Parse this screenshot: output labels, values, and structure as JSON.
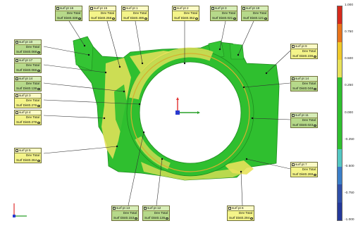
{
  "colors": {
    "part_green": "#2fbf2f",
    "part_yellow": "#e8e25a",
    "tag_yellow": "#f4f48a",
    "tag_green": "#b6d98a",
    "leader_line": "#333333",
    "axis_x": "#e03030",
    "axis_y": "#2aa02a",
    "axis_z": "#2a3ad0"
  },
  "legend": {
    "colors": [
      "#d62a1c",
      "#e8731a",
      "#f0c92a",
      "#e8e25a",
      "#2fbf2f",
      "#2fbf2f",
      "#2fbf2f",
      "#2fbf2f",
      "#53c7c2",
      "#3a7ec8",
      "#2f4fa8",
      "#23389a"
    ],
    "labels": [
      "1.000",
      "0.750",
      "0.500",
      "0.250",
      "0.000",
      "-0.250",
      "-0.500",
      "-0.750",
      "-1.000"
    ]
  },
  "annotations": [
    {
      "id": "surf-pt-16",
      "label": "surf pt 16",
      "line1": "Dev  Total",
      "line2_label": "Surf Dist",
      "value": "0.338",
      "variant": "green"
    },
    {
      "id": "surf-pt-15",
      "label": "surf pt 15",
      "line1": "Dev  Total",
      "line2_label": "Surf Dist",
      "value": "0.258",
      "variant": "yellow"
    },
    {
      "id": "surf-pt-1",
      "label": "surf pt 1",
      "line1": "Dev  Total",
      "line2_label": "Surf Dist",
      "value": "0.495",
      "variant": "yellow"
    },
    {
      "id": "surf-pt-2",
      "label": "surf pt 2",
      "line1": "Dev  Total",
      "line2_label": "Surf Dist",
      "value": "0.352",
      "variant": "yellow"
    },
    {
      "id": "surf-pt-3-top",
      "label": "surf pt 3",
      "line1": "Dev  Total",
      "line2_label": "Surf Dist",
      "value": "0.021",
      "variant": "green"
    },
    {
      "id": "surf-pt-18",
      "label": "surf pt 18",
      "line1": "Dev  Total",
      "line2_label": "Surf Dist",
      "value": "0.121",
      "variant": "green"
    },
    {
      "id": "surf-pt-10",
      "label": "surf pt 10",
      "line1": "Dev  Total",
      "line2_label": "Surf Dist",
      "value": "0.068",
      "variant": "green"
    },
    {
      "id": "surf-pt-17",
      "label": "surf pt 17",
      "line1": "Dev  Total",
      "line2_label": "Surf Dist",
      "value": "0.066",
      "variant": "green"
    },
    {
      "id": "surf-pt-14-left",
      "label": "surf pt 14",
      "line1": "Dev  Total",
      "line2_label": "Surf Dist",
      "value": "0.138",
      "variant": "green"
    },
    {
      "id": "surf-pt-3",
      "label": "surf pt 3",
      "line1": "Dev  Total",
      "line2_label": "Surf Dist",
      "value": "0.276",
      "variant": "yellow"
    },
    {
      "id": "surf-pt-4",
      "label": "surf pt 4",
      "line1": "Dev  Total",
      "line2_label": "Surf Dist",
      "value": "0.278",
      "variant": "yellow"
    },
    {
      "id": "surf-pt-5",
      "label": "surf pt 5",
      "line1": "Dev  Total",
      "line2_label": "Surf Dist",
      "value": "0.264",
      "variant": "yellow"
    },
    {
      "id": "surf-pt-13",
      "label": "surf pt 13",
      "line1": "Dev  Total",
      "line2_label": "Surf Dist",
      "value": "0.153",
      "variant": "green"
    },
    {
      "id": "surf-pt-12",
      "label": "surf pt 12",
      "line1": "Dev  Total",
      "line2_label": "Surf Dist",
      "value": "0.135",
      "variant": "green"
    },
    {
      "id": "surf-pt-6",
      "label": "surf pt 6",
      "line1": "Dev  Total",
      "line2_label": "Surf Dist",
      "value": "0.294",
      "variant": "yellow"
    },
    {
      "id": "surf-pt-7",
      "label": "surf pt 7",
      "line1": "Dev  Total",
      "line2_label": "Surf Dist",
      "value": "0.269",
      "variant": "yellow"
    },
    {
      "id": "surf-pt-11",
      "label": "surf pt 11",
      "line1": "Dev  Total",
      "line2_label": "Surf Dist",
      "value": "0.023",
      "variant": "green"
    },
    {
      "id": "surf-pt-14-right",
      "label": "surf pt 14",
      "line1": "Dev  Total",
      "line2_label": "Surf Dist",
      "value": "0.048",
      "variant": "green"
    },
    {
      "id": "surf-pt-9",
      "label": "surf pt 9",
      "line1": "Dev  Total",
      "line2_label": "Surf Dist",
      "value": "0.236",
      "variant": "yellow"
    }
  ]
}
